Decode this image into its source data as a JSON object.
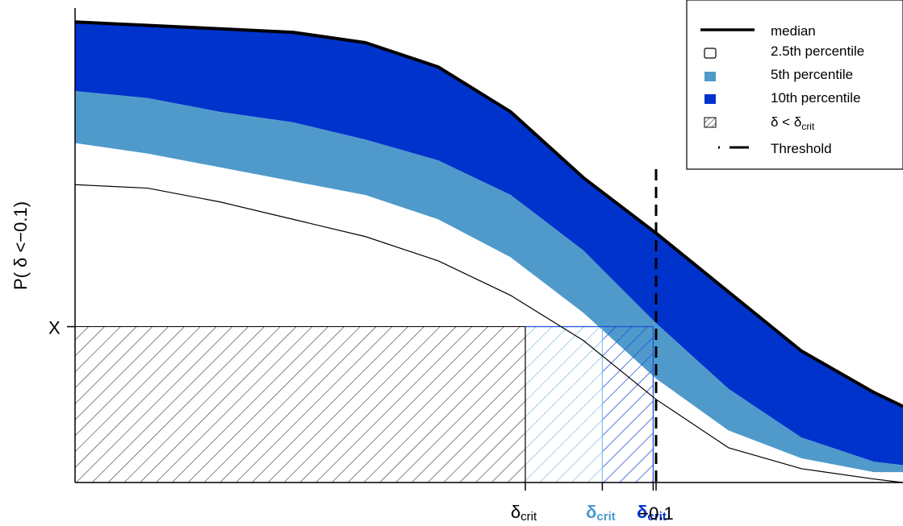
{
  "chart_data": {
    "type": "area",
    "ylabel": "P( δ <−0.1)",
    "y_marker_label": "X",
    "y_marker_value": 0.45,
    "threshold_label": "−0.1",
    "threshold_x": -0.1,
    "xlim": [
      -0.5,
      0.07
    ],
    "ylim": [
      0,
      1.37
    ],
    "x": [
      -0.5,
      -0.45,
      -0.4,
      -0.35,
      -0.3,
      -0.25,
      -0.2,
      -0.15,
      -0.1,
      -0.05,
      0.0,
      0.05,
      0.07
    ],
    "series": [
      {
        "name": "median",
        "values": [
          1.33,
          1.32,
          1.31,
          1.3,
          1.27,
          1.2,
          1.07,
          0.88,
          0.72,
          0.55,
          0.38,
          0.26,
          0.22
        ]
      },
      {
        "name": "2.5th percentile",
        "values": [
          0.98,
          0.95,
          0.91,
          0.87,
          0.83,
          0.76,
          0.65,
          0.49,
          0.3,
          0.15,
          0.07,
          0.03,
          0.03
        ]
      },
      {
        "name": "5th percentile",
        "values": [
          1.13,
          1.11,
          1.07,
          1.04,
          0.99,
          0.93,
          0.83,
          0.67,
          0.46,
          0.27,
          0.13,
          0.06,
          0.05
        ]
      },
      {
        "name": "10th percentile",
        "values": [
          1.33,
          1.32,
          1.31,
          1.3,
          1.27,
          1.2,
          1.07,
          0.88,
          0.72,
          0.55,
          0.38,
          0.26,
          0.22
        ]
      }
    ],
    "lower_line": [
      0.86,
      0.85,
      0.81,
      0.76,
      0.71,
      0.64,
      0.54,
      0.41,
      0.24,
      0.1,
      0.04,
      0.01,
      0.0
    ],
    "crit_points": [
      {
        "label_main": "δ",
        "label_sub": "crit",
        "x": -0.19,
        "color": "#000000"
      },
      {
        "label_main": "δ",
        "label_sub": "crit",
        "x": -0.137,
        "color": "#4b9acd"
      },
      {
        "label_main": "δ",
        "label_sub": "crit",
        "x": -0.102,
        "color": "#0033cc"
      }
    ],
    "colors": {
      "median": "#000000",
      "p2_5": "#ffffff",
      "p5": "#4f9acb",
      "p10": "#0033cc",
      "hatch_black": "#333333",
      "hatch_light": "#89c2e8",
      "hatch_blue": "#1a4fd6"
    },
    "legend": {
      "position": "top-right",
      "items": [
        {
          "label": "median",
          "symbol": "line"
        },
        {
          "label": "2.5th percentile",
          "symbol": "white-box"
        },
        {
          "label": "5th percentile",
          "symbol": "light-blue-box"
        },
        {
          "label": "10th percentile",
          "symbol": "blue-box"
        },
        {
          "label_main": "δ < δ",
          "label_sub": "crit",
          "symbol": "hatch-box"
        },
        {
          "label": "Threshold",
          "symbol": "dashed-line"
        }
      ]
    }
  }
}
